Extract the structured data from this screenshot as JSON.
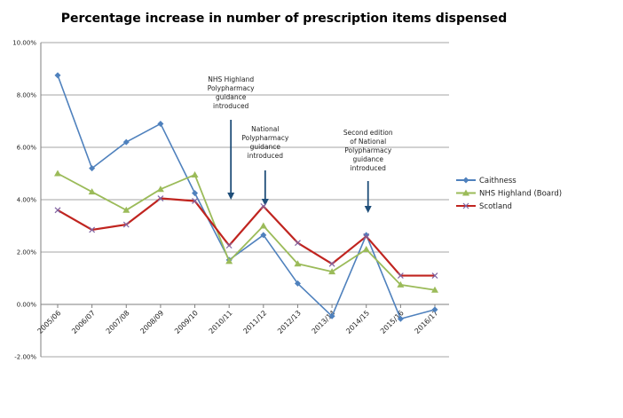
{
  "chart_data": {
    "type": "line",
    "title": "Percentage increase in number of prescription items dispensed",
    "xlabel": "",
    "ylabel": "",
    "categories": [
      "2005/06",
      "2006/07",
      "2007/08",
      "2008/09",
      "2009/10",
      "2010/11",
      "2011/12",
      "2012/13",
      "2013/14",
      "2014/15",
      "2015/16",
      "2016/17"
    ],
    "ylim": [
      -2,
      10
    ],
    "yticks": [
      -2,
      0,
      2,
      4,
      6,
      8,
      10
    ],
    "ytick_labels": [
      "-2.00%",
      "0.00%",
      "2.00%",
      "4.00%",
      "6.00%",
      "8.00%",
      "10.00%"
    ],
    "series": [
      {
        "name": "Caithness",
        "color": "#4f81bd",
        "marker": "diamond",
        "values": [
          8.75,
          5.2,
          6.2,
          6.9,
          4.25,
          1.7,
          2.65,
          0.8,
          -0.45,
          2.65,
          -0.55,
          -0.2
        ]
      },
      {
        "name": "NHS Highland (Board)",
        "color": "#9bbb59",
        "marker": "triangle",
        "values": [
          5.0,
          4.3,
          3.6,
          4.4,
          4.95,
          1.65,
          3.0,
          1.55,
          1.25,
          2.1,
          0.75,
          0.55
        ]
      },
      {
        "name": "Scotland",
        "color": "#c0241f",
        "marker": "x",
        "values": [
          3.6,
          2.85,
          3.05,
          4.05,
          3.95,
          2.25,
          3.75,
          2.35,
          1.55,
          2.6,
          1.1,
          1.1
        ]
      }
    ],
    "annotations": [
      {
        "lines": [
          "NHS Highland",
          "Polypharmacy",
          "guidance",
          "introduced"
        ],
        "at_category": "2010/11"
      },
      {
        "lines": [
          "National",
          "Polypharmacy",
          "guidance",
          "introduced"
        ],
        "at_category": "2011/12"
      },
      {
        "lines": [
          "Second edition",
          "of National",
          "Polypharmacy",
          "guidance",
          "introduced"
        ],
        "at_category": "2014/15"
      }
    ],
    "grid": true,
    "legend_position": "right"
  }
}
